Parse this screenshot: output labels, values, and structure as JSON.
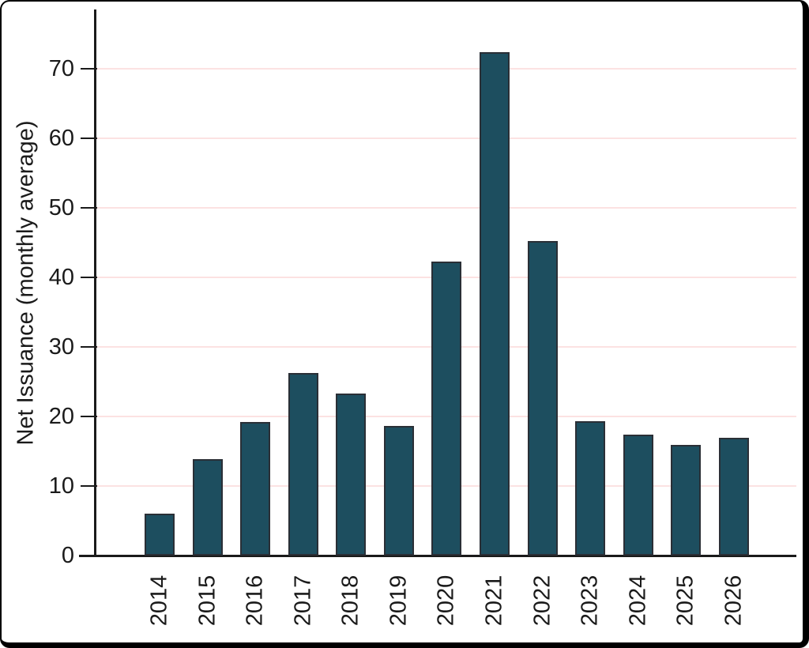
{
  "chart_data": {
    "type": "bar",
    "categories": [
      "2014",
      "2015",
      "2016",
      "2017",
      "2018",
      "2019",
      "2020",
      "2021",
      "2022",
      "2023",
      "2024",
      "2025",
      "2026"
    ],
    "values": [
      6.0,
      13.9,
      19.2,
      26.2,
      23.3,
      18.6,
      42.3,
      72.4,
      45.2,
      19.3,
      17.4,
      15.9,
      16.9
    ],
    "title": "",
    "xlabel": "",
    "ylabel": "Net Issuance (monthly average)",
    "ylim": [
      0,
      78.5
    ],
    "yticks": [
      0,
      10,
      20,
      30,
      40,
      50,
      60,
      70
    ],
    "grid": "horizontal",
    "legend": "none",
    "x_tick_rotation": 90,
    "colors": {
      "bar_fill": "#1d4e5f",
      "bar_border": "#2a2f36",
      "gridline": "#fce2e2",
      "axis": "#1a1a1a",
      "text": "#1a1a1a",
      "background": "#ffffff",
      "frame_border": "#000000"
    }
  }
}
